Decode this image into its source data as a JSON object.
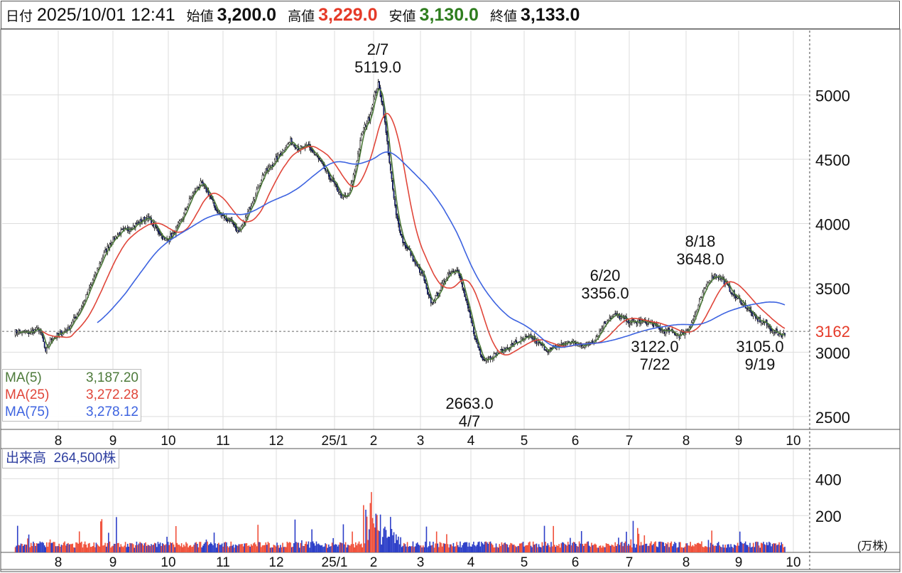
{
  "header": {
    "date_label": "日付",
    "date": "2025/10/01 12:41",
    "open_label": "始値",
    "open": "3,200.0",
    "high_label": "高値",
    "high": "3,229.0",
    "low_label": "安値",
    "low": "3,130.0",
    "close_label": "終値",
    "close": "3,133.0",
    "colors": {
      "high": "#e53a28",
      "low": "#2e7d1e",
      "base": "#111111"
    }
  },
  "legend": [
    {
      "label": "MA(5)",
      "value": "3,187.20",
      "color": "#4d7a3a"
    },
    {
      "label": "MA(25)",
      "value": "3,272.28",
      "color": "#e0463a"
    },
    {
      "label": "MA(75)",
      "value": "3,278.12",
      "color": "#3d63e0"
    }
  ],
  "volume_label": "出来高",
  "volume_value": "264,500株",
  "volume_unit": "(万株)",
  "current_price_label": "3162",
  "chart_data": {
    "type": "candlestick",
    "price_axis": {
      "ticks": [
        2500,
        3000,
        3500,
        4000,
        4500,
        5000
      ],
      "range": [
        2400,
        5500
      ],
      "current": 3162,
      "current_color": "#e53a28"
    },
    "volume_axis": {
      "ticks": [
        200,
        400
      ],
      "range": [
        0,
        560
      ]
    },
    "x_ticks": [
      "8",
      "9",
      "10",
      "11",
      "12",
      "25/1",
      "2",
      "3",
      "4",
      "5",
      "6",
      "7",
      "8",
      "9",
      "10"
    ],
    "grid": true,
    "colors": {
      "up": "#f0503a",
      "down": "#2c3ec8",
      "candle_down": "#16269a",
      "candle_up": "#ffffff"
    },
    "price_path": [
      [
        0,
        3160
      ],
      [
        12,
        3150
      ],
      [
        22,
        3180
      ],
      [
        25,
        3120
      ],
      [
        28,
        2990
      ],
      [
        32,
        3100
      ],
      [
        40,
        3140
      ],
      [
        48,
        3180
      ],
      [
        55,
        3280
      ],
      [
        62,
        3390
      ],
      [
        70,
        3560
      ],
      [
        78,
        3730
      ],
      [
        86,
        3860
      ],
      [
        94,
        3930
      ],
      [
        102,
        3960
      ],
      [
        110,
        4000
      ],
      [
        118,
        4050
      ],
      [
        126,
        3970
      ],
      [
        134,
        3870
      ],
      [
        142,
        3920
      ],
      [
        150,
        4050
      ],
      [
        158,
        4220
      ],
      [
        166,
        4310
      ],
      [
        172,
        4250
      ],
      [
        180,
        4100
      ],
      [
        188,
        4040
      ],
      [
        194,
        4020
      ],
      [
        200,
        3920
      ],
      [
        206,
        4040
      ],
      [
        214,
        4220
      ],
      [
        222,
        4390
      ],
      [
        230,
        4460
      ],
      [
        238,
        4560
      ],
      [
        246,
        4640
      ],
      [
        254,
        4580
      ],
      [
        262,
        4600
      ],
      [
        270,
        4510
      ],
      [
        278,
        4400
      ],
      [
        286,
        4290
      ],
      [
        292,
        4200
      ],
      [
        298,
        4220
      ],
      [
        304,
        4450
      ],
      [
        310,
        4720
      ],
      [
        316,
        4820
      ],
      [
        320,
        4980
      ],
      [
        324,
        5080
      ],
      [
        328,
        4920
      ],
      [
        332,
        4630
      ],
      [
        336,
        4330
      ],
      [
        340,
        4060
      ],
      [
        346,
        3860
      ],
      [
        352,
        3780
      ],
      [
        358,
        3670
      ],
      [
        364,
        3600
      ],
      [
        368,
        3440
      ],
      [
        372,
        3380
      ],
      [
        378,
        3470
      ],
      [
        386,
        3610
      ],
      [
        394,
        3650
      ],
      [
        398,
        3540
      ],
      [
        404,
        3330
      ],
      [
        410,
        3120
      ],
      [
        416,
        2960
      ],
      [
        422,
        2950
      ],
      [
        430,
        2990
      ],
      [
        440,
        3040
      ],
      [
        450,
        3090
      ],
      [
        460,
        3120
      ],
      [
        468,
        3060
      ],
      [
        476,
        3010
      ],
      [
        484,
        3050
      ],
      [
        494,
        3080
      ],
      [
        504,
        3060
      ],
      [
        512,
        3060
      ],
      [
        520,
        3140
      ],
      [
        528,
        3260
      ],
      [
        536,
        3290
      ],
      [
        544,
        3250
      ],
      [
        552,
        3230
      ],
      [
        560,
        3240
      ],
      [
        568,
        3220
      ],
      [
        576,
        3170
      ],
      [
        584,
        3160
      ],
      [
        592,
        3130
      ],
      [
        600,
        3180
      ],
      [
        606,
        3290
      ],
      [
        612,
        3430
      ],
      [
        618,
        3560
      ],
      [
        624,
        3600
      ],
      [
        630,
        3570
      ],
      [
        636,
        3500
      ],
      [
        642,
        3430
      ],
      [
        650,
        3370
      ],
      [
        660,
        3260
      ],
      [
        668,
        3230
      ],
      [
        676,
        3160
      ],
      [
        682,
        3140
      ],
      [
        686,
        3133
      ]
    ],
    "annotations": [
      {
        "date": "2/7",
        "value": "5119.0",
        "type": "high"
      },
      {
        "date": "4/7",
        "value": "2663.0",
        "type": "low"
      },
      {
        "date": "6/20",
        "value": "3356.0",
        "type": "high"
      },
      {
        "date": "7/22",
        "value": "3122.0",
        "type": "low"
      },
      {
        "date": "8/18",
        "value": "3648.0",
        "type": "high"
      },
      {
        "date": "9/19",
        "value": "3105.0",
        "type": "low"
      }
    ]
  }
}
